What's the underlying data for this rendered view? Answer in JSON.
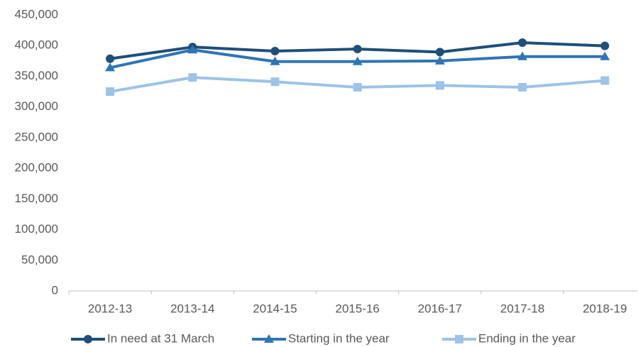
{
  "chart_data": {
    "type": "line",
    "categories": [
      "2012-13",
      "2013-14",
      "2014-15",
      "2015-16",
      "2016-17",
      "2017-18",
      "2018-19"
    ],
    "series": [
      {
        "name": "In need at 31 March",
        "color": "#1f4e79",
        "marker": "circle",
        "values": [
          378600,
          397600,
          391000,
          394400,
          389400,
          404700,
          399500
        ]
      },
      {
        "name": "Starting in the year",
        "color": "#2e75b6",
        "marker": "triangle",
        "values": [
          364000,
          393000,
          374000,
          374000,
          375000,
          382000,
          382000
        ]
      },
      {
        "name": "Ending in the year",
        "color": "#9dc3e6",
        "marker": "square",
        "values": [
          325000,
          348000,
          341000,
          332000,
          335000,
          332000,
          343000
        ]
      }
    ],
    "ylim": [
      0,
      450000
    ],
    "yticks": [
      0,
      {
        "value": 50000,
        "label": "50,000"
      },
      {
        "value": 100000,
        "label": "100,000"
      },
      {
        "value": 150000,
        "label": "150,000"
      },
      {
        "value": 200000,
        "label": "200,000"
      },
      {
        "value": 250000,
        "label": "250,000"
      },
      {
        "value": 300000,
        "label": "300,000"
      },
      {
        "value": 350000,
        "label": "350,000"
      },
      {
        "value": 400000,
        "label": "400,000"
      },
      {
        "value": 450000,
        "label": "450,000"
      }
    ],
    "legend": "bottom",
    "grid": false
  }
}
